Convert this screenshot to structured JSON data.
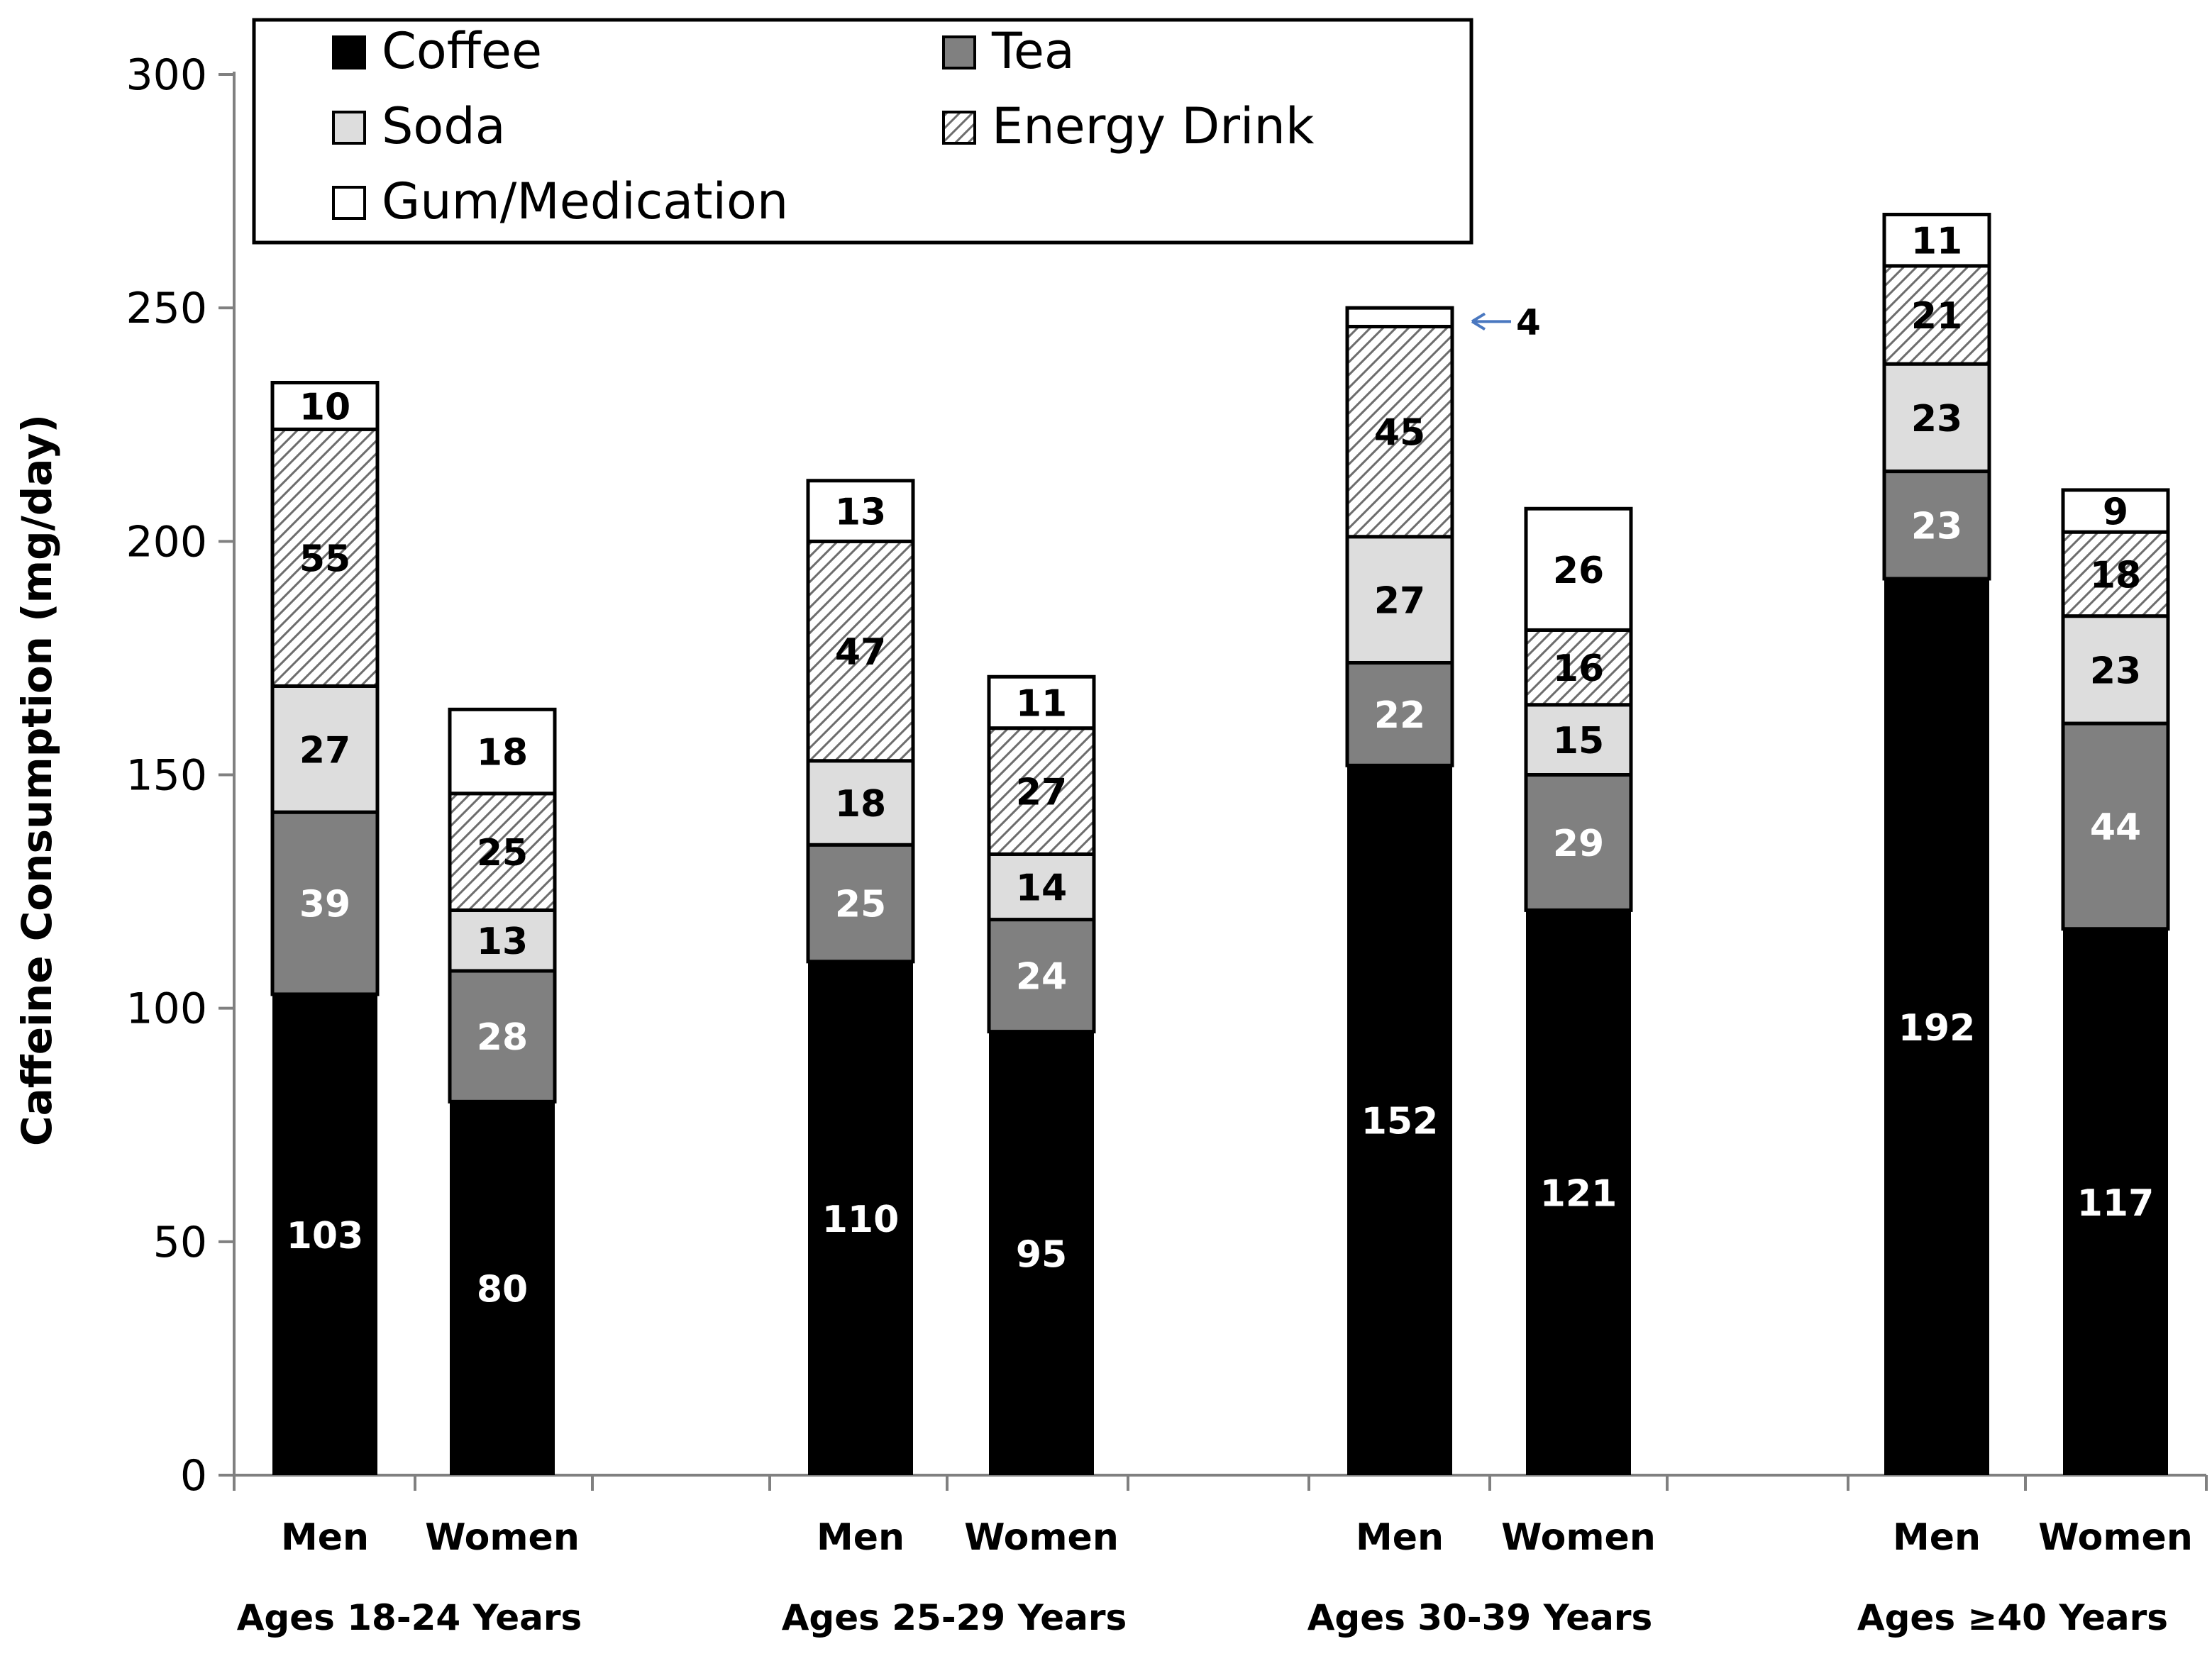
{
  "chart_data": {
    "type": "bar",
    "stacked": true,
    "title": "",
    "xlabel": "",
    "ylabel": "Caffeine Consumption  (mg/day)",
    "ylim": [
      0,
      300
    ],
    "yticks": [
      0,
      50,
      100,
      150,
      200,
      250,
      300
    ],
    "legend_position": "top-left",
    "groups": [
      "Ages 18-24 Years",
      "Ages 25-29 Years",
      "Ages 30-39 Years",
      "Ages ≥40 Years"
    ],
    "categories": [
      "Men",
      "Women",
      "Men",
      "Women",
      "Men",
      "Women",
      "Men",
      "Women"
    ],
    "category_group": [
      0,
      0,
      1,
      1,
      2,
      2,
      3,
      3
    ],
    "series": [
      {
        "name": "Coffee",
        "fill": "coffee",
        "values": [
          103,
          80,
          110,
          95,
          152,
          121,
          192,
          117
        ]
      },
      {
        "name": "Tea",
        "fill": "tea",
        "values": [
          39,
          28,
          25,
          24,
          22,
          29,
          23,
          44
        ]
      },
      {
        "name": "Soda",
        "fill": "soda",
        "values": [
          27,
          13,
          18,
          14,
          27,
          15,
          23,
          23
        ]
      },
      {
        "name": "Energy Drink",
        "fill": "energy",
        "values": [
          55,
          25,
          47,
          27,
          45,
          16,
          21,
          18
        ]
      },
      {
        "name": "Gum/Medication",
        "fill": "gum",
        "values": [
          10,
          18,
          13,
          11,
          4,
          26,
          11,
          9
        ]
      }
    ],
    "label_colors": {
      "coffee": "#ffffff",
      "tea": "#ffffff",
      "soda": "#000000",
      "energy": "#000000",
      "gum": "#000000"
    },
    "colors": {
      "coffee": "#000000",
      "tea": "#808080",
      "soda": "#dddddd",
      "energy": "#ffffff",
      "gum": "#ffffff",
      "callout": "#4a78c0"
    },
    "annotations": [
      {
        "text": "4",
        "bar_index": 4,
        "series": "Gum/Medication",
        "style": "arrow-left"
      }
    ]
  }
}
